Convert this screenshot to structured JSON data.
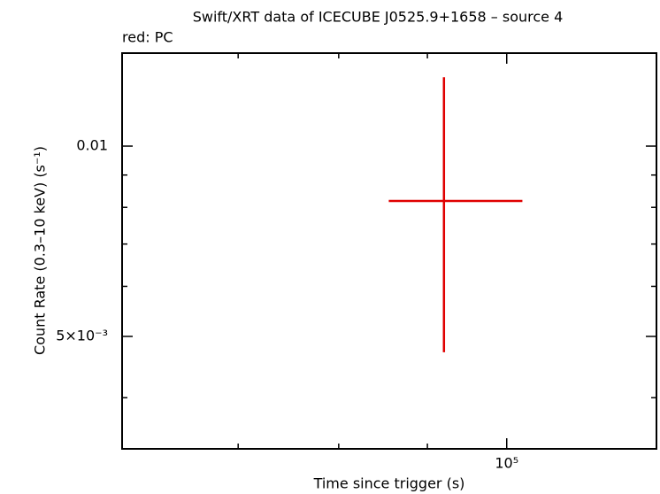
{
  "chart_data": {
    "type": "errorbar",
    "title": "Swift/XRT data of ICECUBE J0525.9+1658 – source 4",
    "subtitle": "red: PC",
    "x_label": "Time since trigger (s)",
    "y_label": "Count Rate (0.3–10 keV) (s⁻¹)",
    "log_x": true,
    "log_y": true,
    "xlim": [
      60000,
      122000
    ],
    "ylim": [
      0.00332,
      0.01403
    ],
    "xticks": [
      {
        "value": 100000,
        "label": "10⁵"
      }
    ],
    "xminor": [
      70000,
      80000,
      90000
    ],
    "yticks": [
      0.01,
      {
        "value": 0.005,
        "label": "5×10⁻³"
      }
    ],
    "yminor": [
      0.004,
      0.006,
      0.007,
      0.008,
      0.009
    ],
    "series": [
      {
        "color": "#e00000",
        "x": [
          92000
        ],
        "x_low": [
          85500
        ],
        "x_high": [
          102100
        ],
        "y": [
          0.00819
        ],
        "y_low": [
          0.00472
        ],
        "y_high": [
          0.01285
        ]
      }
    ]
  }
}
